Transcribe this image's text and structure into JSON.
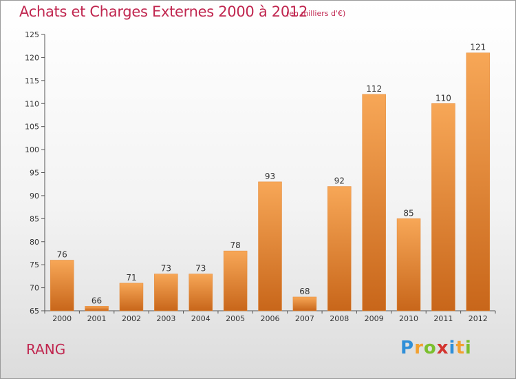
{
  "title": "Achats et Charges Externes 2000 à 2012",
  "subtitle": "(en milliers d'€)",
  "location": "RANG",
  "logo": {
    "letters": [
      "P",
      "r",
      "o",
      "x",
      "i",
      "t",
      "i"
    ],
    "colors": [
      "#2f8fd8",
      "#f2a02f",
      "#7bbf2e",
      "#d3342f",
      "#2f8fd8",
      "#f2a02f",
      "#7bbf2e"
    ]
  },
  "colors": {
    "bar_top": "#f7a757",
    "bar_bottom": "#c8661a",
    "title": "#c0264f"
  },
  "chart_data": {
    "type": "bar",
    "title": "Achats et Charges Externes 2000 à 2012",
    "subtitle": "(en milliers d'€)",
    "categories": [
      "2000",
      "2001",
      "2002",
      "2003",
      "2004",
      "2005",
      "2006",
      "2007",
      "2008",
      "2009",
      "2010",
      "2011",
      "2012"
    ],
    "values": [
      76,
      66,
      71,
      73,
      73,
      78,
      93,
      68,
      92,
      112,
      85,
      110,
      121
    ],
    "ylim": [
      65,
      125
    ],
    "yticks": [
      65,
      70,
      75,
      80,
      85,
      90,
      95,
      100,
      105,
      110,
      115,
      120,
      125
    ],
    "grid": false,
    "data_labels": true
  }
}
